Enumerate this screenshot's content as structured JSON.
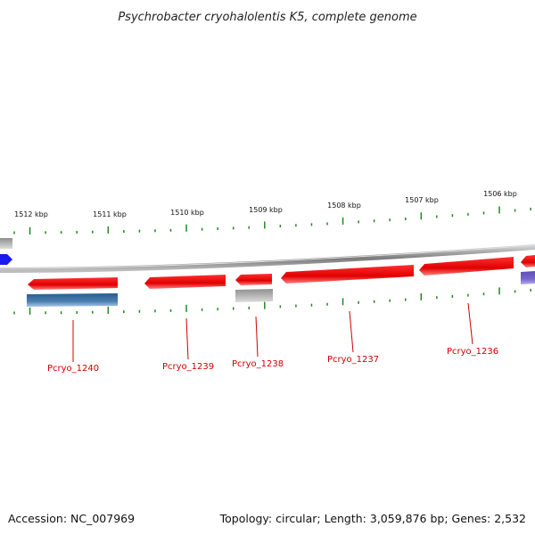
{
  "title": "Psychrobacter cryohalolentis K5, complete genome",
  "footer": {
    "accession": "Accession: NC_007969",
    "topology": "Topology: circular; Length: 3,059,876 bp; Genes: 2,532"
  },
  "scale": {
    "unit": "kbp",
    "labels": [
      "1512 kbp",
      "1511 kbp",
      "1510 kbp",
      "1509 kbp",
      "1508 kbp",
      "1507 kbp",
      "1506 kbp"
    ]
  },
  "genes": [
    {
      "id": "Pcryo_1240",
      "label": "Pcryo_1240",
      "strand": "minus",
      "color": "#ee0000"
    },
    {
      "id": "Pcryo_1239",
      "label": "Pcryo_1239",
      "strand": "minus",
      "color": "#ee0000"
    },
    {
      "id": "Pcryo_1238",
      "label": "Pcryo_1238",
      "strand": "minus",
      "color": "#ee0000"
    },
    {
      "id": "Pcryo_1237",
      "label": "Pcryo_1237",
      "strand": "minus",
      "color": "#ee0000"
    },
    {
      "id": "Pcryo_1236",
      "label": "Pcryo_1236",
      "strand": "minus",
      "color": "#ee0000"
    }
  ],
  "colors": {
    "backbone": "#888888",
    "gene": "#ee0000",
    "tick": "#228822",
    "forward_feature": "#1a1aee",
    "blue_feature": "#4a7fb0",
    "grey_feature": "#aaaaaa",
    "purple_feature": "#7766cc"
  }
}
